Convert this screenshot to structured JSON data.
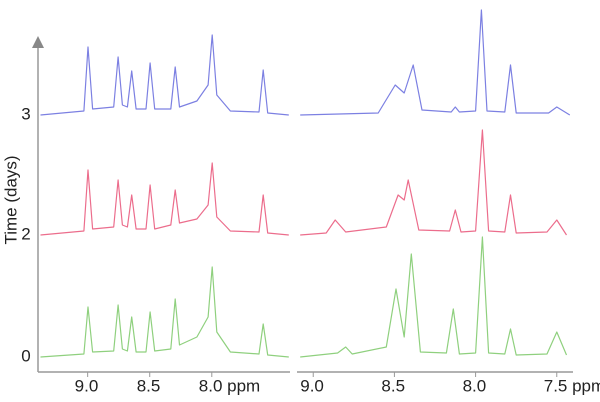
{
  "chart_data": [
    {
      "type": "line",
      "y_label": "Time (days)",
      "row_labels": [
        "0",
        "2",
        "3"
      ],
      "xlim": [
        9.4,
        7.37
      ],
      "ylim": [
        0,
        120
      ],
      "xticks": [
        {
          "value": 9.0,
          "label": "9.0"
        },
        {
          "value": 8.5,
          "label": "8.5"
        },
        {
          "value": 8.0,
          "label": "8.0 ppm"
        }
      ],
      "series": [
        {
          "color": "#8fd07e",
          "x": [
            9.38,
            9.03,
            8.997,
            8.96,
            8.79,
            8.755,
            8.72,
            8.68,
            8.645,
            8.61,
            8.53,
            8.497,
            8.46,
            8.33,
            8.295,
            8.26,
            8.12,
            8.03,
            7.997,
            7.96,
            7.85,
            7.62,
            7.586,
            7.55,
            7.38
          ],
          "values": [
            0,
            3,
            50,
            5,
            6,
            52,
            8,
            6,
            40,
            5,
            5,
            45,
            6,
            8,
            58,
            12,
            20,
            40,
            90,
            25,
            5,
            3,
            33,
            2,
            0
          ]
        },
        {
          "color": "#ec6d8c",
          "x": [
            9.38,
            9.03,
            8.997,
            8.96,
            8.79,
            8.755,
            8.72,
            8.68,
            8.645,
            8.61,
            8.53,
            8.497,
            8.46,
            8.33,
            8.295,
            8.26,
            8.12,
            8.03,
            7.997,
            7.96,
            7.85,
            7.62,
            7.586,
            7.55,
            7.38
          ],
          "values": [
            0,
            4,
            65,
            6,
            8,
            55,
            10,
            8,
            40,
            6,
            6,
            50,
            6,
            10,
            45,
            12,
            16,
            30,
            72,
            18,
            4,
            3,
            40,
            2,
            0
          ]
        },
        {
          "color": "#7c80e2",
          "x": [
            9.38,
            9.03,
            8.997,
            8.96,
            8.79,
            8.755,
            8.72,
            8.68,
            8.645,
            8.61,
            8.53,
            8.497,
            8.46,
            8.33,
            8.295,
            8.26,
            8.12,
            8.03,
            7.997,
            7.96,
            7.85,
            7.62,
            7.586,
            7.55,
            7.38
          ],
          "values": [
            0,
            4,
            68,
            6,
            8,
            58,
            10,
            8,
            44,
            6,
            6,
            52,
            6,
            6,
            48,
            8,
            14,
            30,
            80,
            20,
            4,
            3,
            45,
            2,
            0
          ]
        }
      ]
    },
    {
      "type": "line",
      "xlim": [
        9.1,
        7.4
      ],
      "ylim": [
        0,
        120
      ],
      "xticks": [
        {
          "value": 9.0,
          "label": "9.0"
        },
        {
          "value": 8.5,
          "label": "8.5"
        },
        {
          "value": 8.0,
          "label": "8.0"
        },
        {
          "value": 7.5,
          "label": "7.5 ppm"
        }
      ],
      "series": [
        {
          "color": "#8fd07e",
          "x": [
            9.08,
            8.85,
            8.8,
            8.76,
            8.55,
            8.49,
            8.44,
            8.396,
            8.34,
            8.18,
            8.137,
            8.1,
            8.0,
            7.958,
            7.92,
            7.82,
            7.785,
            7.75,
            7.56,
            7.5,
            7.44
          ],
          "values": [
            0,
            4,
            10,
            3,
            10,
            68,
            20,
            103,
            5,
            4,
            48,
            3,
            4,
            120,
            4,
            3,
            28,
            2,
            3,
            25,
            2
          ]
        },
        {
          "color": "#ec6d8c",
          "x": [
            9.08,
            8.92,
            8.865,
            8.8,
            8.55,
            8.477,
            8.44,
            8.415,
            8.35,
            8.16,
            8.125,
            8.09,
            8.0,
            7.958,
            7.92,
            7.82,
            7.785,
            7.75,
            7.56,
            7.5,
            7.44
          ],
          "values": [
            0,
            2,
            15,
            3,
            8,
            40,
            35,
            55,
            5,
            4,
            25,
            3,
            4,
            105,
            4,
            3,
            40,
            2,
            3,
            15,
            0
          ]
        },
        {
          "color": "#7c80e2",
          "x": [
            9.08,
            8.6,
            8.495,
            8.44,
            8.384,
            8.33,
            8.15,
            8.125,
            8.1,
            8.0,
            7.964,
            7.93,
            7.82,
            7.785,
            7.75,
            7.55,
            7.5,
            7.42
          ],
          "values": [
            0,
            2,
            30,
            22,
            50,
            5,
            3,
            8,
            3,
            4,
            105,
            4,
            3,
            50,
            2,
            2,
            8,
            0
          ]
        }
      ]
    }
  ]
}
